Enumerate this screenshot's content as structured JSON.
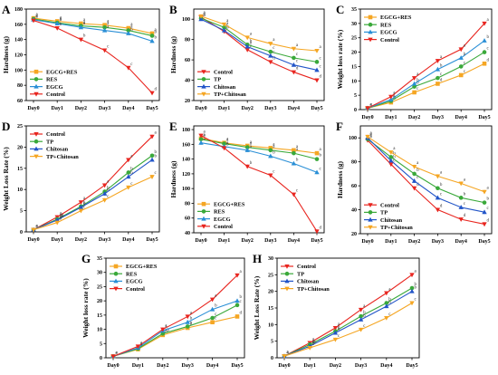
{
  "days": [
    "Day0",
    "Day1",
    "Day2",
    "Day3",
    "Day4",
    "Day5"
  ],
  "colors": {
    "EGCG+RES": "#f5a623",
    "RES": "#3aa93a",
    "EGCG": "#2a8fd6",
    "Control": "#e8251f",
    "TP": "#3aa93a",
    "Chitosan": "#2255c8",
    "TP+Chitosan": "#f5a623"
  },
  "chart_data": [
    {
      "panel": "A",
      "type": "line",
      "ylabel": "Hardness (g)",
      "ylim": [
        60,
        180
      ],
      "yticks": [
        60,
        80,
        100,
        120,
        140,
        160,
        180
      ],
      "legend": [
        "EGCG+RES",
        "RES",
        "EGCG",
        "Control"
      ],
      "legend_pos": "bottom-left",
      "series": [
        {
          "name": "EGCG+RES",
          "values": [
            168,
            164,
            161,
            159,
            155,
            148
          ],
          "letters": [
            "a",
            "a",
            "a",
            "a",
            "a",
            "a"
          ]
        },
        {
          "name": "RES",
          "values": [
            167,
            162,
            158,
            156,
            152,
            145
          ],
          "letters": [
            "a",
            "a",
            "a",
            "a",
            "a",
            "b"
          ]
        },
        {
          "name": "EGCG",
          "values": [
            166,
            161,
            156,
            152,
            148,
            138
          ],
          "letters": [
            "a",
            "a",
            "a",
            "a",
            "b",
            "b"
          ]
        },
        {
          "name": "Control",
          "values": [
            165,
            155,
            140,
            126,
            103,
            70
          ],
          "letters": [
            "a",
            "b",
            "b",
            "c",
            "c",
            "d"
          ]
        }
      ]
    },
    {
      "panel": "B",
      "type": "line",
      "ylabel": "Hardness (g)",
      "ylim": [
        20,
        110
      ],
      "yticks": [
        20,
        40,
        60,
        80,
        100
      ],
      "legend": [
        "Control",
        "TP",
        "Chitosan",
        "TP+Chitosan"
      ],
      "legend_pos": "bottom-left",
      "series": [
        {
          "name": "Control",
          "values": [
            102,
            88,
            70,
            58,
            48,
            40
          ],
          "letters": [
            "a",
            "b",
            "c",
            "d",
            "d",
            "d"
          ]
        },
        {
          "name": "TP",
          "values": [
            101,
            92,
            75,
            68,
            62,
            58
          ],
          "letters": [
            "a",
            "a",
            "b",
            "c",
            "c",
            "c"
          ]
        },
        {
          "name": "Chitosan",
          "values": [
            100,
            89,
            73,
            64,
            55,
            50
          ],
          "letters": [
            "a",
            "b",
            "b",
            "c",
            "c",
            "c"
          ]
        },
        {
          "name": "TP+Chitosan",
          "values": [
            103,
            95,
            82,
            76,
            71,
            69
          ],
          "letters": [
            "a",
            "a",
            "a",
            "a",
            "a",
            "a"
          ]
        }
      ]
    },
    {
      "panel": "C",
      "type": "line",
      "ylabel": "Weight loss rate (%)",
      "ylim": [
        0,
        35
      ],
      "yticks": [
        0,
        5,
        10,
        15,
        20,
        25,
        30,
        35
      ],
      "legend": [
        "EGCG+RES",
        "RES",
        "EGCG",
        "Control"
      ],
      "legend_pos": "top-left",
      "series": [
        {
          "name": "EGCG+RES",
          "values": [
            0.5,
            2.5,
            6,
            9,
            12,
            16
          ],
          "letters": [
            "a",
            "b",
            "c",
            "d",
            "c",
            "d"
          ]
        },
        {
          "name": "RES",
          "values": [
            0.5,
            3,
            8,
            11,
            15,
            20
          ],
          "letters": [
            "a",
            "b",
            "b",
            "c",
            "c",
            "c"
          ]
        },
        {
          "name": "EGCG",
          "values": [
            0.5,
            3.5,
            9,
            14,
            18,
            24
          ],
          "letters": [
            "a",
            "a",
            "b",
            "b",
            "b",
            "b"
          ]
        },
        {
          "name": "Control",
          "values": [
            0.5,
            4.5,
            11,
            17,
            21,
            30
          ],
          "letters": [
            "a",
            "a",
            "a",
            "a",
            "a",
            "a"
          ]
        }
      ]
    },
    {
      "panel": "D",
      "type": "line",
      "ylabel": "Weight Loss Rate (%)",
      "ylim": [
        0,
        25
      ],
      "yticks": [
        0,
        5,
        10,
        15,
        20,
        25
      ],
      "legend": [
        "Control",
        "TP",
        "Chitosan",
        "TP+Chitosan"
      ],
      "legend_pos": "top-left",
      "series": [
        {
          "name": "Control",
          "values": [
            0.5,
            3.5,
            7,
            11,
            17,
            22.5
          ],
          "letters": [
            "a",
            "a",
            "a",
            "a",
            "a",
            "a"
          ]
        },
        {
          "name": "TP",
          "values": [
            0.5,
            3,
            6,
            9.5,
            14,
            18
          ],
          "letters": [
            "a",
            "ab",
            "b",
            "b",
            "b",
            "b"
          ]
        },
        {
          "name": "Chitosan",
          "values": [
            0.5,
            2.8,
            5.8,
            9,
            13,
            17
          ],
          "letters": [
            "a",
            "ab",
            "b",
            "b",
            "b",
            "b"
          ]
        },
        {
          "name": "TP+Chitosan",
          "values": [
            0.5,
            2.2,
            5,
            7.5,
            10.5,
            13
          ],
          "letters": [
            "a",
            "b",
            "c",
            "c",
            "c",
            "c"
          ]
        }
      ]
    },
    {
      "panel": "E",
      "type": "line",
      "ylabel": "Hardness (g)",
      "ylim": [
        40,
        185
      ],
      "yticks": [
        40,
        60,
        80,
        100,
        120,
        140,
        160,
        180
      ],
      "legend": [
        "EGCG+RES",
        "RES",
        "EGCG",
        "Control"
      ],
      "legend_pos": "bottom-left",
      "series": [
        {
          "name": "EGCG+RES",
          "values": [
            168,
            162,
            158,
            155,
            152,
            148
          ],
          "letters": [
            "a",
            "a",
            "a",
            "a",
            "a",
            "a"
          ]
        },
        {
          "name": "RES",
          "values": [
            167,
            161,
            156,
            152,
            148,
            140
          ],
          "letters": [
            "a",
            "a",
            "a",
            "a",
            "a",
            "b"
          ]
        },
        {
          "name": "EGCG",
          "values": [
            162,
            157,
            152,
            144,
            134,
            122
          ],
          "letters": [
            "a",
            "a",
            "a",
            "b",
            "b",
            "c"
          ]
        },
        {
          "name": "Control",
          "values": [
            172,
            155,
            130,
            118,
            92,
            42
          ],
          "letters": [
            "a",
            "b",
            "b",
            "c",
            "c",
            "d"
          ]
        }
      ]
    },
    {
      "panel": "F",
      "type": "line",
      "ylabel": "Hardness (g)",
      "ylim": [
        20,
        110
      ],
      "yticks": [
        20,
        40,
        60,
        80,
        100
      ],
      "legend": [
        "Control",
        "TP",
        "Chitosan",
        "TP+Chitosan"
      ],
      "legend_pos": "bottom-left",
      "series": [
        {
          "name": "Control",
          "values": [
            98,
            78,
            58,
            40,
            32,
            28
          ],
          "letters": [
            "a",
            "c",
            "d",
            "d",
            "d",
            "d"
          ]
        },
        {
          "name": "TP",
          "values": [
            99,
            84,
            70,
            58,
            50,
            46
          ],
          "letters": [
            "a",
            "b",
            "b",
            "b",
            "b",
            "b"
          ]
        },
        {
          "name": "Chitosan",
          "values": [
            100,
            81,
            64,
            50,
            42,
            38
          ],
          "letters": [
            "a",
            "b",
            "c",
            "c",
            "c",
            "c"
          ]
        },
        {
          "name": "TP+Chitosan",
          "values": [
            101,
            88,
            76,
            68,
            62,
            55
          ],
          "letters": [
            "a",
            "a",
            "a",
            "a",
            "a",
            "a"
          ]
        }
      ]
    },
    {
      "panel": "G",
      "type": "line",
      "ylabel": "Weight loss rate (%)",
      "ylim": [
        0,
        35
      ],
      "yticks": [
        0,
        5,
        10,
        15,
        20,
        25,
        30,
        35
      ],
      "legend": [
        "EGCG+RES",
        "RES",
        "EGCG",
        "Control"
      ],
      "legend_pos": "top-left",
      "series": [
        {
          "name": "EGCG+RES",
          "values": [
            0.5,
            3,
            8,
            10.5,
            12.5,
            14.5
          ],
          "letters": [
            "a",
            "a",
            "b",
            "b",
            "c",
            "d"
          ]
        },
        {
          "name": "RES",
          "values": [
            0.5,
            3.2,
            8.5,
            11,
            14,
            18.5
          ],
          "letters": [
            "a",
            "a",
            "ab",
            "b",
            "c",
            "c"
          ]
        },
        {
          "name": "EGCG",
          "values": [
            0.5,
            3.5,
            9.5,
            12.5,
            17,
            20
          ],
          "letters": [
            "a",
            "a",
            "a",
            "b",
            "b",
            "b"
          ]
        },
        {
          "name": "Control",
          "values": [
            0.5,
            4,
            10,
            14.5,
            20.5,
            29
          ],
          "letters": [
            "a",
            "a",
            "a",
            "a",
            "a",
            "a"
          ]
        }
      ]
    },
    {
      "panel": "H",
      "type": "line",
      "ylabel": "Weight Loss Rate (%)",
      "ylim": [
        0,
        30
      ],
      "yticks": [
        0,
        5,
        10,
        15,
        20,
        25,
        30
      ],
      "legend": [
        "Control",
        "TP",
        "Chitosan",
        "TP+Chitosan"
      ],
      "legend_pos": "top-left",
      "series": [
        {
          "name": "Control",
          "values": [
            0.5,
            4.5,
            9,
            14.5,
            19.5,
            25
          ],
          "letters": [
            "a",
            "a",
            "a",
            "a",
            "a",
            "a"
          ]
        },
        {
          "name": "TP",
          "values": [
            0.5,
            4,
            8,
            12.5,
            16.5,
            21
          ],
          "letters": [
            "a",
            "a",
            "b",
            "b",
            "b",
            "b"
          ]
        },
        {
          "name": "Chitosan",
          "values": [
            0.5,
            3.5,
            7.5,
            11.5,
            15.5,
            20
          ],
          "letters": [
            "a",
            "ab",
            "b",
            "b",
            "b",
            "b"
          ]
        },
        {
          "name": "TP+Chitosan",
          "values": [
            0.5,
            3,
            5.5,
            8.5,
            12,
            16.5
          ],
          "letters": [
            "a",
            "b",
            "c",
            "c",
            "c",
            "c"
          ]
        }
      ]
    }
  ]
}
